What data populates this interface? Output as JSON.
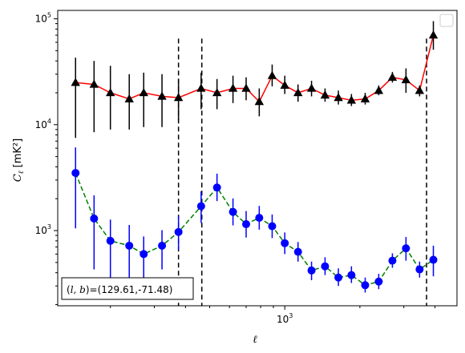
{
  "chart_data": {
    "type": "scatter",
    "title": "",
    "xlabel": "ℓ",
    "ylabel": "C_ℓ [mK²]",
    "xscale": "log",
    "yscale": "log",
    "xlim": [
      123,
      4900
    ],
    "ylim": [
      195,
      120000
    ],
    "x_ticks": [
      {
        "value": 1000,
        "label": "10^3"
      }
    ],
    "y_ticks": [
      {
        "value": 1000,
        "label": "10^3"
      },
      {
        "value": 10000,
        "label": "10^4"
      },
      {
        "value": 100000,
        "label": "10^5"
      }
    ],
    "grid": false,
    "legend": "upper-right (empty)",
    "annotation": "(l, b)=(129.61,-71.48)",
    "vlines": [
      {
        "x": 375,
        "ymin": 195,
        "ymax": 65000,
        "style": "dashed",
        "color": "#000000"
      },
      {
        "x": 465,
        "ymin": 195,
        "ymax": 65000,
        "style": "dashed",
        "color": "#000000"
      },
      {
        "x": 3700,
        "ymin": 195,
        "ymax": 65000,
        "style": "dashed",
        "color": "#000000"
      }
    ],
    "series": [
      {
        "marker": "triangle",
        "line_color": "#ff0000",
        "marker_color": "#000000",
        "errorbar_color": "#000000",
        "line_style": "solid",
        "points": [
          {
            "x": 145,
            "y": 25000,
            "lo": 7500,
            "hi": 43000
          },
          {
            "x": 172,
            "y": 24000,
            "lo": 8500,
            "hi": 40000
          },
          {
            "x": 200,
            "y": 20000,
            "lo": 9000,
            "hi": 36000
          },
          {
            "x": 238,
            "y": 17500,
            "lo": 9000,
            "hi": 30000
          },
          {
            "x": 272,
            "y": 20000,
            "lo": 9500,
            "hi": 31000
          },
          {
            "x": 322,
            "y": 18500,
            "lo": 9500,
            "hi": 30000
          },
          {
            "x": 375,
            "y": 18000,
            "lo": 11000,
            "hi": 27000
          },
          {
            "x": 462,
            "y": 22000,
            "lo": 14000,
            "hi": 31000
          },
          {
            "x": 535,
            "y": 20000,
            "lo": 14000,
            "hi": 27000
          },
          {
            "x": 620,
            "y": 22000,
            "lo": 16000,
            "hi": 29000
          },
          {
            "x": 700,
            "y": 22000,
            "lo": 17000,
            "hi": 28000
          },
          {
            "x": 790,
            "y": 16500,
            "lo": 12000,
            "hi": 22000
          },
          {
            "x": 890,
            "y": 29000,
            "lo": 23000,
            "hi": 37000
          },
          {
            "x": 1000,
            "y": 23500,
            "lo": 19500,
            "hi": 29000
          },
          {
            "x": 1130,
            "y": 20000,
            "lo": 16500,
            "hi": 24000
          },
          {
            "x": 1280,
            "y": 22000,
            "lo": 18500,
            "hi": 26000
          },
          {
            "x": 1450,
            "y": 19000,
            "lo": 16500,
            "hi": 22000
          },
          {
            "x": 1640,
            "y": 18000,
            "lo": 15500,
            "hi": 21000
          },
          {
            "x": 1850,
            "y": 17000,
            "lo": 15000,
            "hi": 19500
          },
          {
            "x": 2100,
            "y": 17500,
            "lo": 15500,
            "hi": 20000
          },
          {
            "x": 2380,
            "y": 21000,
            "lo": 19000,
            "hi": 23500
          },
          {
            "x": 2700,
            "y": 28000,
            "lo": 25000,
            "hi": 31500
          },
          {
            "x": 3060,
            "y": 26500,
            "lo": 20000,
            "hi": 34000
          },
          {
            "x": 3470,
            "y": 21000,
            "lo": 18500,
            "hi": 23500
          },
          {
            "x": 3940,
            "y": 70000,
            "lo": 51000,
            "hi": 95000
          }
        ]
      },
      {
        "marker": "circle",
        "line_color": "#008000",
        "marker_color": "#0000ff",
        "errorbar_color": "#0000ff",
        "line_style": "dashed",
        "points": [
          {
            "x": 145,
            "y": 3500,
            "lo": 1050,
            "hi": 6100
          },
          {
            "x": 172,
            "y": 1300,
            "lo": 430,
            "hi": 2150
          },
          {
            "x": 200,
            "y": 800,
            "lo": 330,
            "hi": 1270
          },
          {
            "x": 238,
            "y": 720,
            "lo": 320,
            "hi": 1130
          },
          {
            "x": 272,
            "y": 600,
            "lo": 310,
            "hi": 880
          },
          {
            "x": 322,
            "y": 720,
            "lo": 430,
            "hi": 1010
          },
          {
            "x": 375,
            "y": 970,
            "lo": 660,
            "hi": 1380
          },
          {
            "x": 462,
            "y": 1700,
            "lo": 1180,
            "hi": 2350
          },
          {
            "x": 535,
            "y": 2550,
            "lo": 1900,
            "hi": 3450
          },
          {
            "x": 620,
            "y": 1500,
            "lo": 1120,
            "hi": 2010
          },
          {
            "x": 700,
            "y": 1150,
            "lo": 860,
            "hi": 1530
          },
          {
            "x": 790,
            "y": 1320,
            "lo": 1020,
            "hi": 1710
          },
          {
            "x": 890,
            "y": 1100,
            "lo": 850,
            "hi": 1420
          },
          {
            "x": 1000,
            "y": 760,
            "lo": 600,
            "hi": 960
          },
          {
            "x": 1130,
            "y": 630,
            "lo": 510,
            "hi": 780
          },
          {
            "x": 1280,
            "y": 420,
            "lo": 340,
            "hi": 510
          },
          {
            "x": 1450,
            "y": 460,
            "lo": 380,
            "hi": 560
          },
          {
            "x": 1640,
            "y": 360,
            "lo": 300,
            "hi": 440
          },
          {
            "x": 1850,
            "y": 380,
            "lo": 320,
            "hi": 460
          },
          {
            "x": 2100,
            "y": 305,
            "lo": 260,
            "hi": 360
          },
          {
            "x": 2380,
            "y": 330,
            "lo": 280,
            "hi": 390
          },
          {
            "x": 2700,
            "y": 520,
            "lo": 445,
            "hi": 610
          },
          {
            "x": 3060,
            "y": 680,
            "lo": 520,
            "hi": 870
          },
          {
            "x": 3470,
            "y": 430,
            "lo": 360,
            "hi": 510
          },
          {
            "x": 3940,
            "y": 530,
            "lo": 370,
            "hi": 720
          }
        ]
      }
    ]
  }
}
